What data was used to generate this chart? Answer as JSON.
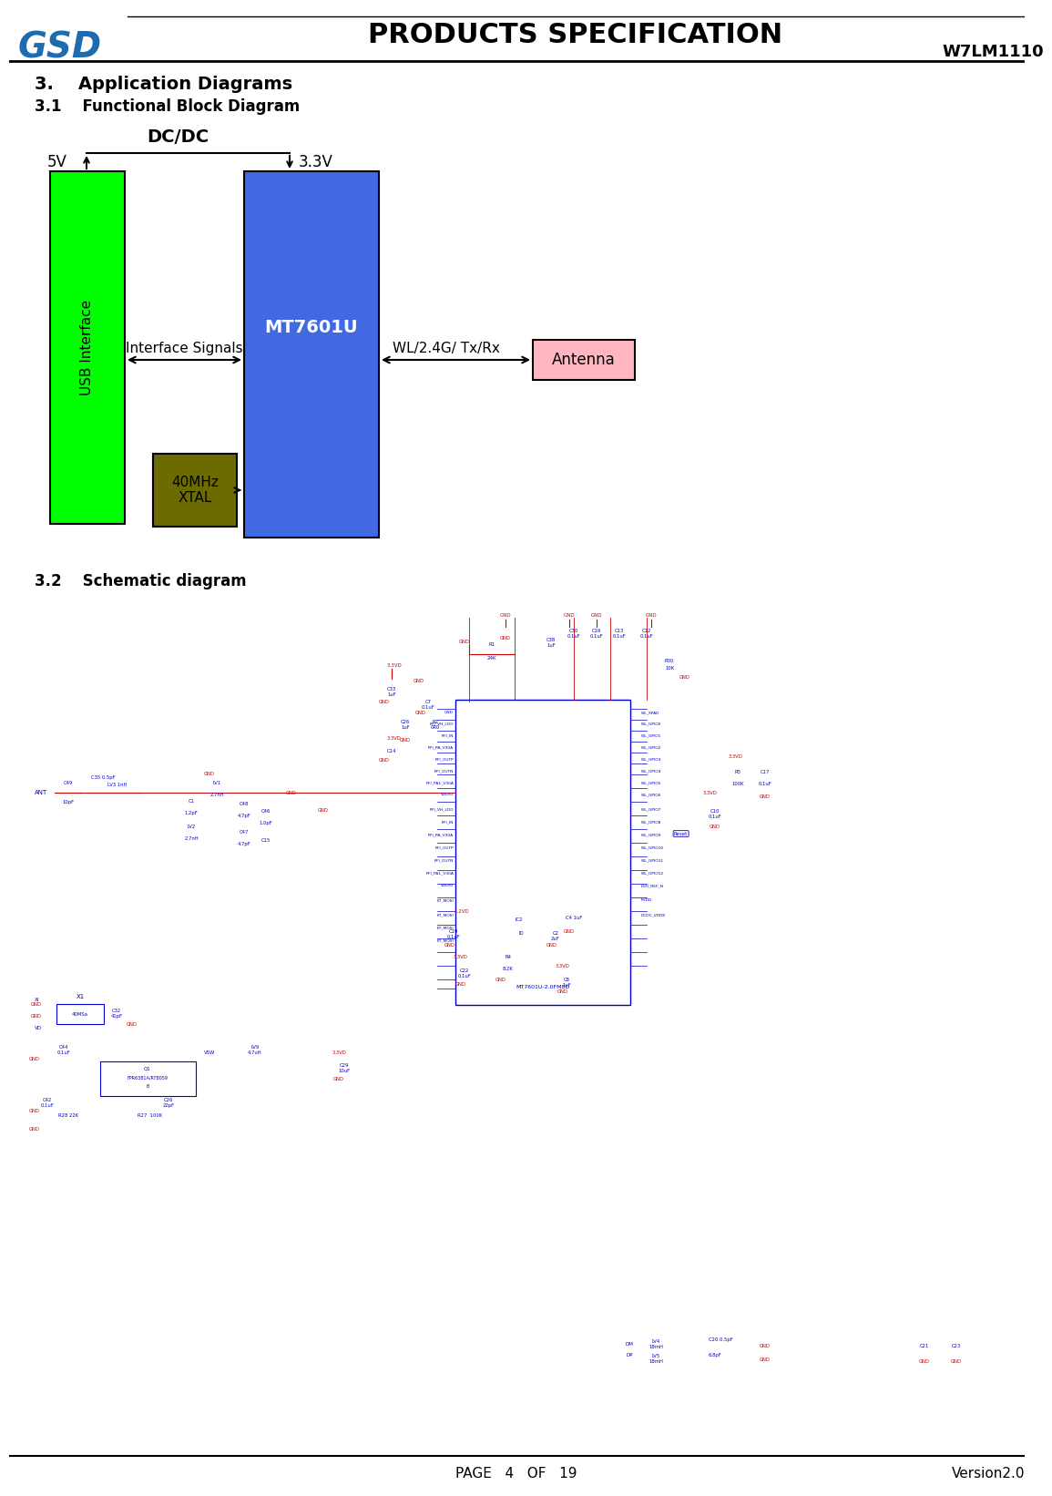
{
  "title": "PRODUCTS SPECIFICATION",
  "model": "W7LM1110",
  "page_info": "PAGE   4   OF   19",
  "version": "Version2.0",
  "section3_title": "3.    Application Diagrams",
  "section31_title": "3.1    Functional Block Diagram",
  "section32_title": "3.2    Schematic diagram",
  "dcdc_label": "DC/DC",
  "v5_label": "5V",
  "v33_label": "3.3V",
  "usb_label": "USB Interface",
  "mt7601u_label": "MT7601U",
  "antenna_label": "Antenna",
  "interface_label": "Interface Signals",
  "wl_label": "WL/2.4G/ Tx/Rx",
  "xtal_label": "40MHz\nXTAL",
  "green_color": "#00FF00",
  "blue_color": "#4169E1",
  "pink_color": "#FFB6C1",
  "olive_color": "#6B6B00",
  "bg_color": "#FFFFFF",
  "border_color": "#000000",
  "gsd_blue": "#1E6BB0",
  "text_color": "#000000",
  "red_color": "#CC0000",
  "blue_text": "#0000CC"
}
